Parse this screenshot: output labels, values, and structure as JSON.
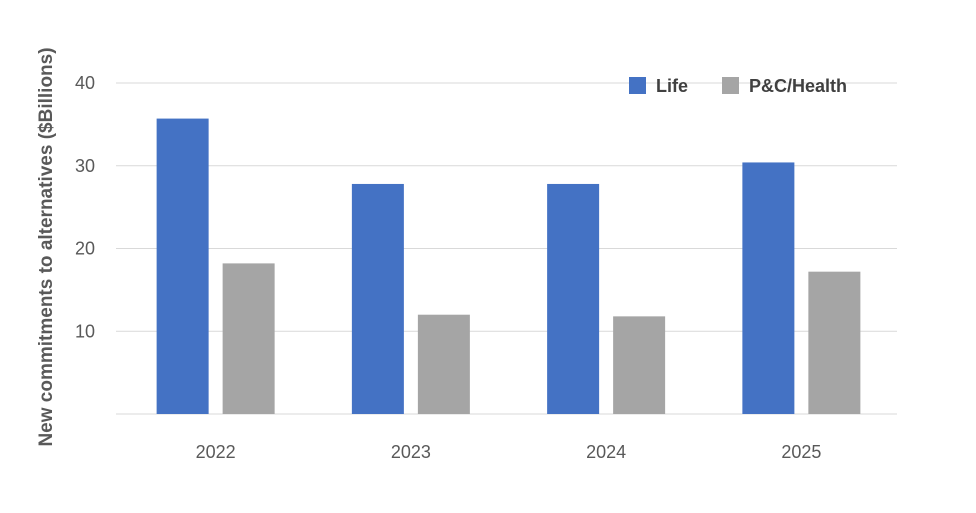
{
  "chart_data": {
    "type": "bar",
    "title": "",
    "xlabel": "",
    "ylabel": "New commitments to alternatives ($Billions)",
    "categories": [
      "2022",
      "2023",
      "2024",
      "2025"
    ],
    "series": [
      {
        "name": "Life",
        "color": "#4472c4",
        "values": [
          35.7,
          27.8,
          27.8,
          30.4
        ]
      },
      {
        "name": "P&C/Health",
        "color": "#a5a5a5",
        "values": [
          18.2,
          12.0,
          11.8,
          17.2
        ]
      }
    ],
    "ylim": [
      0,
      40
    ],
    "yticks": [
      10,
      20,
      30,
      40
    ],
    "grid": true,
    "legend_position": "top-right"
  }
}
